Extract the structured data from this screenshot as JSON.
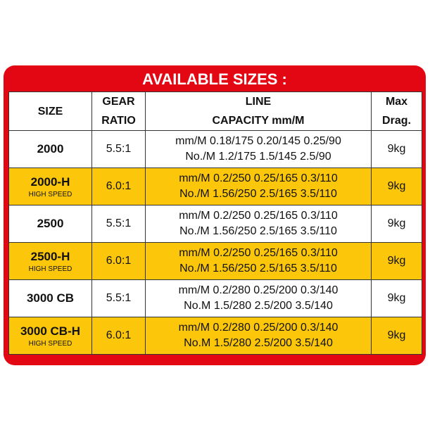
{
  "title": "AVAILABLE SIZES :",
  "colors": {
    "frame": "#e30613",
    "highlight_row": "#fcc70a",
    "normal_row": "#ffffff"
  },
  "headers": {
    "size": "SIZE",
    "gear_1": "GEAR",
    "gear_2": "RATIO",
    "line_1": "LINE",
    "line_2": "CAPACITY mm/M",
    "drag_1": "Max",
    "drag_2": "Drag."
  },
  "rows": [
    {
      "size": "2000",
      "sub": "",
      "ratio": "5.5:1",
      "cap1": "mm/M 0.18/175 0.20/145 0.25/90",
      "cap2": "No./M 1.2/175 1.5/145 2.5/90",
      "drag": "9kg",
      "highlight": false
    },
    {
      "size": "2000-H",
      "sub": "HIGH SPEED",
      "ratio": "6.0:1",
      "cap1": "mm/M 0.2/250 0.25/165 0.3/110",
      "cap2": "No./M 1.56/250 2.5/165 3.5/110",
      "drag": "9kg",
      "highlight": true
    },
    {
      "size": "2500",
      "sub": "",
      "ratio": "5.5:1",
      "cap1": "mm/M 0.2/250 0.25/165 0.3/110",
      "cap2": "No./M 1.56/250 2.5/165 3.5/110",
      "drag": "9kg",
      "highlight": false
    },
    {
      "size": "2500-H",
      "sub": "HIGH SPEED",
      "ratio": "6.0:1",
      "cap1": "mm/M 0.2/250 0.25/165 0.3/110",
      "cap2": "No./M 1.56/250 2.5/165 3.5/110",
      "drag": "9kg",
      "highlight": true
    },
    {
      "size": "3000 CB",
      "sub": "",
      "ratio": "5.5:1",
      "cap1": "mm/M 0.2/280 0.25/200 0.3/140",
      "cap2": "No.M 1.5/280 2.5/200 3.5/140",
      "drag": "9kg",
      "highlight": false
    },
    {
      "size": "3000 CB-H",
      "sub": "HIGH SPEED",
      "ratio": "6.0:1",
      "cap1": "mm/M 0.2/280 0.25/200 0.3/140",
      "cap2": "No.M 1.5/280 2.5/200 3.5/140",
      "drag": "9kg",
      "highlight": true
    }
  ]
}
